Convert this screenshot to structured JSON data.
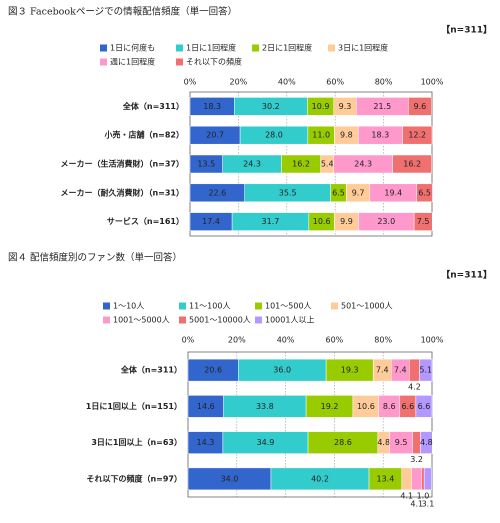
{
  "chart_data": [
    {
      "type": "stacked-bar-horizontal",
      "title": "図３ Facebookページでの情報配信頻度（単一回答）",
      "note": "【n=311】",
      "categories": [
        "全体（n=311）",
        "小売・店舗（n=82）",
        "メーカー（生活消費財）（n=37）",
        "メーカー（耐久消費財）（n=31）",
        "サービス（n=161）"
      ],
      "series": [
        {
          "name": "1日に何度も",
          "color": "#3366cc",
          "values": [
            18.3,
            20.7,
            13.5,
            22.6,
            17.4
          ],
          "value_labels": [
            "18.3",
            "20.7",
            "13.5",
            "22.6",
            "17.4"
          ]
        },
        {
          "name": "1日に1回程度",
          "color": "#33cccc",
          "values": [
            30.2,
            28.0,
            24.3,
            35.5,
            31.7
          ],
          "value_labels": [
            "30.2",
            "28.0",
            "24.3",
            "35.5",
            "31.7"
          ]
        },
        {
          "name": "2日に1回程度",
          "color": "#99cc00",
          "values": [
            10.9,
            11.0,
            16.2,
            6.5,
            10.6
          ],
          "value_labels": [
            "10.9",
            "11.0",
            "16.2",
            "6.5",
            "10.6"
          ]
        },
        {
          "name": "3日に1回程度",
          "color": "#ffcc99",
          "values": [
            9.3,
            9.8,
            5.4,
            9.7,
            9.9
          ],
          "value_labels": [
            "9.3",
            "9.8",
            "5.4",
            "9.7",
            "9.9"
          ]
        },
        {
          "name": "週に1回程度",
          "color": "#ff99cc",
          "values": [
            21.5,
            18.3,
            24.3,
            19.4,
            23.0
          ],
          "value_labels": [
            "21.5",
            "18.3",
            "24.3",
            "19.4",
            "23.0"
          ]
        },
        {
          "name": "それ以下の頻度",
          "color": "#f07070",
          "values": [
            9.6,
            12.2,
            16.2,
            6.5,
            7.5
          ],
          "value_labels": [
            "9.6",
            "12.2",
            "16.2",
            "6.5",
            "7.5"
          ]
        }
      ],
      "xlim": [
        0,
        100
      ],
      "xticks": [
        {
          "value": 0,
          "label": "0%"
        },
        {
          "value": 20,
          "label": "20%"
        },
        {
          "value": 40,
          "label": "40%"
        },
        {
          "value": 60,
          "label": "60%"
        },
        {
          "value": 80,
          "label": "80%"
        },
        {
          "value": 100,
          "label": "100%"
        }
      ],
      "grid": true
    },
    {
      "type": "stacked-bar-horizontal",
      "title": "図４ 配信頻度別のファン数（単一回答）",
      "note": "【n=311】",
      "categories": [
        "全体（n=311）",
        "1日に1回以上（n=151）",
        "3日に1回以上（n=63）",
        "それ以下の頻度（n=97）"
      ],
      "series": [
        {
          "name": "1～10人",
          "color": "#3366cc",
          "values": [
            20.6,
            14.6,
            14.3,
            34.0
          ],
          "value_labels": [
            "20.6",
            "14.6",
            "14.3",
            "34.0"
          ]
        },
        {
          "name": "11～100人",
          "color": "#33cccc",
          "values": [
            36.0,
            33.8,
            34.9,
            40.2
          ],
          "value_labels": [
            "36.0",
            "33.8",
            "34.9",
            "40.2"
          ]
        },
        {
          "name": "101～500人",
          "color": "#99cc00",
          "values": [
            19.3,
            19.2,
            28.6,
            13.4
          ],
          "value_labels": [
            "19.3",
            "19.2",
            "28.6",
            "13.4"
          ]
        },
        {
          "name": "501～1000人",
          "color": "#ffcc99",
          "values": [
            7.4,
            10.6,
            4.8,
            4.1
          ],
          "value_labels": [
            "7.4",
            "10.6",
            "4.8",
            "4.1"
          ]
        },
        {
          "name": "1001～5000人",
          "color": "#ff99cc",
          "values": [
            7.4,
            8.6,
            9.5,
            4.1
          ],
          "value_labels": [
            "7.4",
            "8.6",
            "9.5",
            "4.1"
          ]
        },
        {
          "name": "5001～10000人",
          "color": "#f07070",
          "values": [
            4.2,
            6.6,
            3.2,
            1.0
          ],
          "value_labels": [
            "4.2",
            "6.6",
            "3.2",
            "1.0"
          ]
        },
        {
          "name": "10001人以上",
          "color": "#b399ff",
          "values": [
            5.1,
            6.6,
            4.8,
            3.1
          ],
          "value_labels": [
            "5.1",
            "6.6",
            "4.8",
            "3.1"
          ]
        }
      ],
      "xlim": [
        0,
        100
      ],
      "xticks": [
        {
          "value": 0,
          "label": "0%"
        },
        {
          "value": 20,
          "label": "20%"
        },
        {
          "value": 40,
          "label": "40%"
        },
        {
          "value": 60,
          "label": "60%"
        },
        {
          "value": 80,
          "label": "80%"
        },
        {
          "value": 100,
          "label": "100%"
        }
      ],
      "grid": true
    }
  ]
}
